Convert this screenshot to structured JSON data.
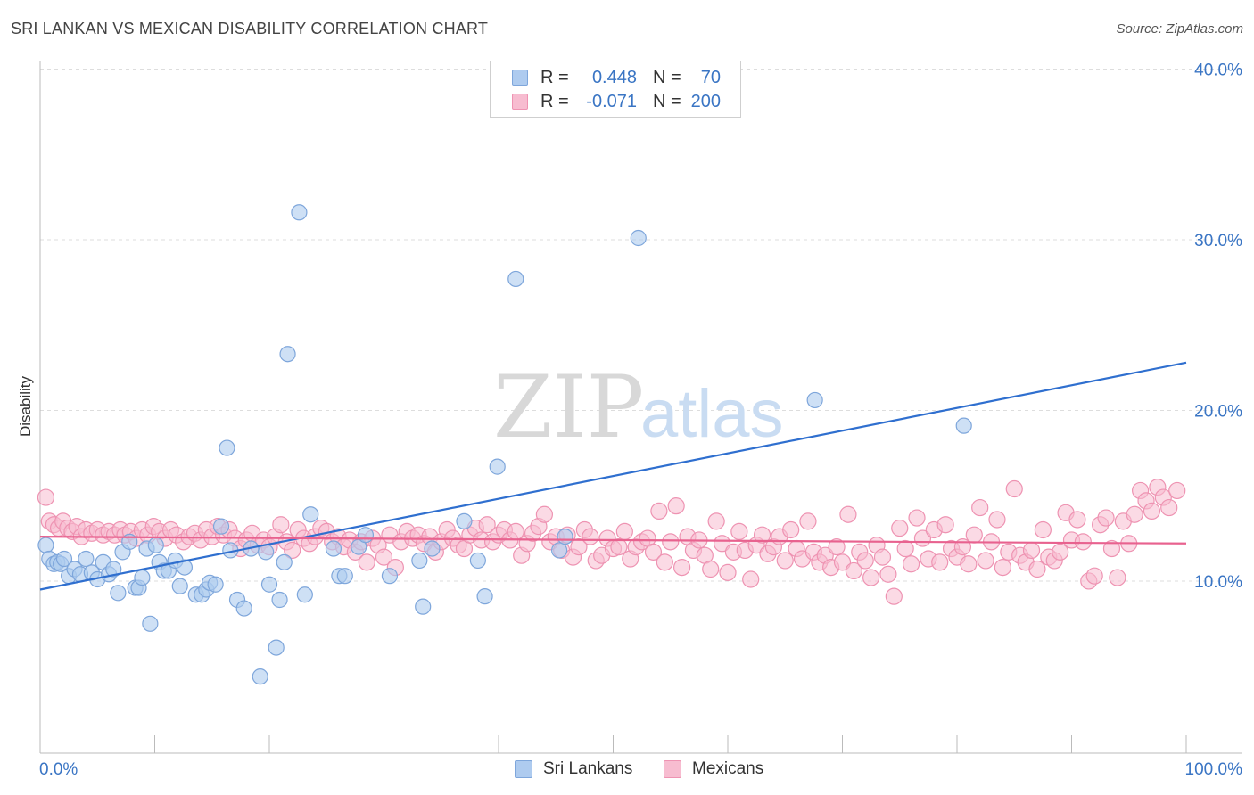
{
  "title": "SRI LANKAN VS MEXICAN DISABILITY CORRELATION CHART",
  "source": "Source: ZipAtlas.com",
  "watermark": {
    "zip": "ZIP",
    "atlas": "atlas"
  },
  "colors": {
    "blue": "#3a75c4",
    "blue_fill": "#aecbef",
    "blue_stroke": "#7ea6db",
    "blue_line": "#2f6fcf",
    "pink_fill": "#f7bcd0",
    "pink_stroke": "#ee93b2",
    "pink_line": "#e8628f",
    "grid": "#dddddd"
  },
  "legend": {
    "rows": [
      {
        "r_label": "R =",
        "r_value": "0.448",
        "n_label": "N =",
        "n_value": "70"
      },
      {
        "r_label": "R =",
        "r_value": "-0.071",
        "n_label": "N =",
        "n_value": "200"
      }
    ]
  },
  "bottom_legend": [
    "Sri Lankans",
    "Mexicans"
  ],
  "chart_data": {
    "type": "scatter",
    "title": "SRI LANKAN VS MEXICAN DISABILITY CORRELATION CHART",
    "xlabel": "",
    "ylabel": "Disability",
    "xlim": [
      0,
      100
    ],
    "ylim": [
      0,
      42
    ],
    "x_tick_labels": [
      "0.0%",
      "100.0%"
    ],
    "y_ticks": [
      10,
      20,
      30,
      40
    ],
    "y_tick_labels": [
      "10.0%",
      "20.0%",
      "30.0%",
      "40.0%"
    ],
    "grid": true,
    "legend_position": "top-center",
    "series": [
      {
        "name": "Sri Lankans",
        "color": "#3a75c4",
        "trend": {
          "x": [
            0,
            100
          ],
          "y": [
            9.4,
            22.7
          ]
        },
        "points": [
          [
            0.5,
            12.0
          ],
          [
            0.8,
            11.2
          ],
          [
            1.2,
            10.9
          ],
          [
            1.5,
            11.0
          ],
          [
            1.8,
            10.9
          ],
          [
            2.1,
            11.2
          ],
          [
            2.5,
            10.2
          ],
          [
            3.0,
            10.6
          ],
          [
            3.5,
            10.3
          ],
          [
            4.0,
            11.2
          ],
          [
            4.5,
            10.4
          ],
          [
            5.0,
            10.0
          ],
          [
            5.5,
            11.0
          ],
          [
            6.0,
            10.3
          ],
          [
            6.4,
            10.6
          ],
          [
            6.8,
            9.2
          ],
          [
            7.2,
            11.6
          ],
          [
            7.8,
            12.2
          ],
          [
            8.3,
            9.5
          ],
          [
            8.6,
            9.5
          ],
          [
            8.9,
            10.1
          ],
          [
            9.3,
            11.8
          ],
          [
            9.6,
            7.4
          ],
          [
            10.1,
            12.0
          ],
          [
            10.4,
            11.0
          ],
          [
            10.8,
            10.5
          ],
          [
            11.2,
            10.5
          ],
          [
            11.8,
            11.1
          ],
          [
            12.2,
            9.6
          ],
          [
            12.6,
            10.7
          ],
          [
            13.6,
            9.1
          ],
          [
            14.1,
            9.1
          ],
          [
            14.5,
            9.4
          ],
          [
            14.8,
            9.8
          ],
          [
            15.3,
            9.7
          ],
          [
            15.8,
            13.1
          ],
          [
            16.3,
            17.7
          ],
          [
            16.6,
            11.7
          ],
          [
            17.2,
            8.8
          ],
          [
            17.8,
            8.3
          ],
          [
            18.4,
            11.8
          ],
          [
            19.2,
            4.3
          ],
          [
            19.7,
            11.6
          ],
          [
            20.0,
            9.7
          ],
          [
            20.6,
            6.0
          ],
          [
            20.9,
            8.8
          ],
          [
            21.3,
            11.0
          ],
          [
            21.6,
            23.2
          ],
          [
            22.6,
            31.5
          ],
          [
            23.1,
            9.1
          ],
          [
            23.6,
            13.8
          ],
          [
            25.6,
            11.8
          ],
          [
            26.1,
            10.2
          ],
          [
            26.6,
            10.2
          ],
          [
            27.8,
            11.9
          ],
          [
            28.4,
            12.6
          ],
          [
            30.5,
            10.2
          ],
          [
            33.1,
            11.1
          ],
          [
            33.4,
            8.4
          ],
          [
            34.2,
            11.8
          ],
          [
            37.0,
            13.4
          ],
          [
            38.2,
            11.1
          ],
          [
            38.8,
            9.0
          ],
          [
            39.9,
            16.6
          ],
          [
            41.5,
            27.6
          ],
          [
            45.3,
            11.7
          ],
          [
            45.8,
            12.5
          ],
          [
            52.2,
            30.0
          ],
          [
            67.6,
            20.5
          ],
          [
            80.6,
            19.0
          ]
        ]
      },
      {
        "name": "Mexicans",
        "color": "#e8628f",
        "trend": {
          "x": [
            0,
            100
          ],
          "y": [
            12.5,
            12.1
          ]
        },
        "points": [
          [
            0.5,
            14.8
          ],
          [
            0.8,
            13.4
          ],
          [
            1.2,
            13.2
          ],
          [
            1.6,
            13.0
          ],
          [
            2.0,
            13.4
          ],
          [
            2.4,
            13.0
          ],
          [
            2.8,
            12.8
          ],
          [
            3.2,
            13.1
          ],
          [
            3.6,
            12.5
          ],
          [
            4.0,
            12.9
          ],
          [
            4.5,
            12.7
          ],
          [
            5.0,
            12.9
          ],
          [
            5.5,
            12.6
          ],
          [
            6.0,
            12.8
          ],
          [
            6.5,
            12.6
          ],
          [
            7.0,
            12.9
          ],
          [
            7.4,
            12.6
          ],
          [
            7.9,
            12.8
          ],
          [
            8.4,
            12.4
          ],
          [
            8.9,
            12.9
          ],
          [
            9.4,
            12.6
          ],
          [
            9.9,
            13.1
          ],
          [
            10.4,
            12.8
          ],
          [
            10.9,
            12.4
          ],
          [
            11.4,
            12.9
          ],
          [
            11.9,
            12.6
          ],
          [
            12.5,
            12.2
          ],
          [
            13.0,
            12.5
          ],
          [
            13.5,
            12.7
          ],
          [
            14.0,
            12.3
          ],
          [
            14.5,
            12.9
          ],
          [
            15.0,
            12.5
          ],
          [
            15.5,
            13.1
          ],
          [
            16.0,
            12.6
          ],
          [
            16.5,
            12.9
          ],
          [
            17.0,
            12.4
          ],
          [
            17.5,
            11.8
          ],
          [
            18.0,
            12.3
          ],
          [
            18.5,
            12.7
          ],
          [
            19.0,
            12.0
          ],
          [
            19.5,
            12.3
          ],
          [
            20.0,
            11.9
          ],
          [
            20.5,
            12.5
          ],
          [
            21.0,
            13.2
          ],
          [
            21.5,
            12.2
          ],
          [
            22.0,
            11.7
          ],
          [
            22.5,
            12.9
          ],
          [
            23.0,
            12.4
          ],
          [
            23.5,
            12.1
          ],
          [
            24.0,
            12.5
          ],
          [
            24.5,
            13.0
          ],
          [
            25.0,
            12.8
          ],
          [
            25.5,
            12.2
          ],
          [
            26.0,
            12.5
          ],
          [
            26.5,
            11.9
          ],
          [
            27.0,
            12.3
          ],
          [
            27.5,
            11.6
          ],
          [
            28.0,
            12.2
          ],
          [
            28.5,
            11.0
          ],
          [
            29.0,
            12.4
          ],
          [
            29.5,
            12.0
          ],
          [
            30.0,
            11.3
          ],
          [
            30.5,
            12.6
          ],
          [
            31.0,
            10.7
          ],
          [
            31.5,
            12.2
          ],
          [
            32.0,
            12.8
          ],
          [
            32.5,
            12.4
          ],
          [
            33.0,
            12.6
          ],
          [
            33.5,
            12.1
          ],
          [
            34.0,
            12.5
          ],
          [
            34.5,
            11.6
          ],
          [
            35.0,
            12.2
          ],
          [
            35.5,
            12.9
          ],
          [
            36.0,
            12.4
          ],
          [
            36.5,
            12.0
          ],
          [
            37.0,
            11.8
          ],
          [
            37.5,
            12.6
          ],
          [
            38.0,
            13.0
          ],
          [
            38.5,
            12.3
          ],
          [
            39.0,
            13.2
          ],
          [
            39.5,
            12.2
          ],
          [
            40.0,
            12.6
          ],
          [
            40.5,
            12.9
          ],
          [
            41.0,
            12.3
          ],
          [
            41.5,
            12.8
          ],
          [
            42.0,
            11.4
          ],
          [
            42.5,
            12.1
          ],
          [
            43.0,
            12.7
          ],
          [
            43.5,
            13.1
          ],
          [
            44.0,
            13.8
          ],
          [
            44.5,
            12.2
          ],
          [
            45.0,
            12.5
          ],
          [
            45.5,
            11.7
          ],
          [
            46.0,
            12.6
          ],
          [
            46.5,
            11.3
          ],
          [
            47.0,
            11.9
          ],
          [
            47.5,
            12.9
          ],
          [
            48.0,
            12.5
          ],
          [
            48.5,
            11.1
          ],
          [
            49.0,
            11.4
          ],
          [
            49.5,
            12.4
          ],
          [
            50.0,
            11.8
          ],
          [
            50.5,
            11.9
          ],
          [
            51.0,
            12.8
          ],
          [
            51.5,
            11.2
          ],
          [
            52.0,
            11.9
          ],
          [
            52.5,
            12.2
          ],
          [
            53.0,
            12.4
          ],
          [
            53.5,
            11.6
          ],
          [
            54.0,
            14.0
          ],
          [
            54.5,
            11.0
          ],
          [
            55.0,
            12.2
          ],
          [
            55.5,
            14.3
          ],
          [
            56.0,
            10.7
          ],
          [
            56.5,
            12.5
          ],
          [
            57.0,
            11.7
          ],
          [
            57.5,
            12.3
          ],
          [
            58.0,
            11.4
          ],
          [
            58.5,
            10.6
          ],
          [
            59.0,
            13.4
          ],
          [
            59.5,
            12.1
          ],
          [
            60.0,
            10.4
          ],
          [
            60.5,
            11.6
          ],
          [
            61.0,
            12.8
          ],
          [
            61.5,
            11.7
          ],
          [
            62.0,
            10.0
          ],
          [
            62.5,
            12.0
          ],
          [
            63.0,
            12.6
          ],
          [
            63.5,
            11.5
          ],
          [
            64.0,
            11.9
          ],
          [
            64.5,
            12.5
          ],
          [
            65.0,
            11.1
          ],
          [
            65.5,
            12.9
          ],
          [
            66.0,
            11.8
          ],
          [
            66.5,
            11.2
          ],
          [
            67.0,
            13.4
          ],
          [
            67.5,
            11.6
          ],
          [
            68.0,
            11.0
          ],
          [
            68.5,
            11.4
          ],
          [
            69.0,
            10.7
          ],
          [
            69.5,
            11.9
          ],
          [
            70.0,
            11.0
          ],
          [
            70.5,
            13.8
          ],
          [
            71.0,
            10.5
          ],
          [
            71.5,
            11.6
          ],
          [
            72.0,
            11.1
          ],
          [
            72.5,
            10.1
          ],
          [
            73.0,
            12.0
          ],
          [
            73.5,
            11.3
          ],
          [
            74.0,
            10.3
          ],
          [
            74.5,
            9.0
          ],
          [
            75.0,
            13.0
          ],
          [
            75.5,
            11.8
          ],
          [
            76.0,
            10.9
          ],
          [
            76.5,
            13.6
          ],
          [
            77.0,
            12.4
          ],
          [
            77.5,
            11.2
          ],
          [
            78.0,
            12.9
          ],
          [
            78.5,
            11.0
          ],
          [
            79.0,
            13.2
          ],
          [
            79.5,
            11.8
          ],
          [
            80.0,
            11.3
          ],
          [
            80.5,
            11.9
          ],
          [
            81.0,
            10.9
          ],
          [
            81.5,
            12.6
          ],
          [
            82.0,
            14.2
          ],
          [
            82.5,
            11.1
          ],
          [
            83.0,
            12.2
          ],
          [
            83.5,
            13.5
          ],
          [
            84.0,
            10.7
          ],
          [
            84.5,
            11.6
          ],
          [
            85.0,
            15.3
          ],
          [
            85.5,
            11.4
          ],
          [
            86.0,
            11.0
          ],
          [
            86.5,
            11.7
          ],
          [
            87.0,
            10.6
          ],
          [
            87.5,
            12.9
          ],
          [
            88.0,
            11.3
          ],
          [
            88.5,
            11.1
          ],
          [
            89.0,
            11.6
          ],
          [
            89.5,
            13.9
          ],
          [
            90.0,
            12.3
          ],
          [
            90.5,
            13.5
          ],
          [
            91.0,
            12.2
          ],
          [
            91.5,
            9.9
          ],
          [
            92.0,
            10.2
          ],
          [
            92.5,
            13.2
          ],
          [
            93.0,
            13.6
          ],
          [
            93.5,
            11.8
          ],
          [
            94.0,
            10.1
          ],
          [
            94.5,
            13.4
          ],
          [
            95.0,
            12.1
          ],
          [
            95.5,
            13.8
          ],
          [
            96.0,
            15.2
          ],
          [
            96.5,
            14.6
          ],
          [
            97.0,
            14.0
          ],
          [
            97.5,
            15.4
          ],
          [
            98.0,
            14.8
          ],
          [
            98.5,
            14.2
          ],
          [
            99.2,
            15.2
          ]
        ]
      }
    ]
  }
}
